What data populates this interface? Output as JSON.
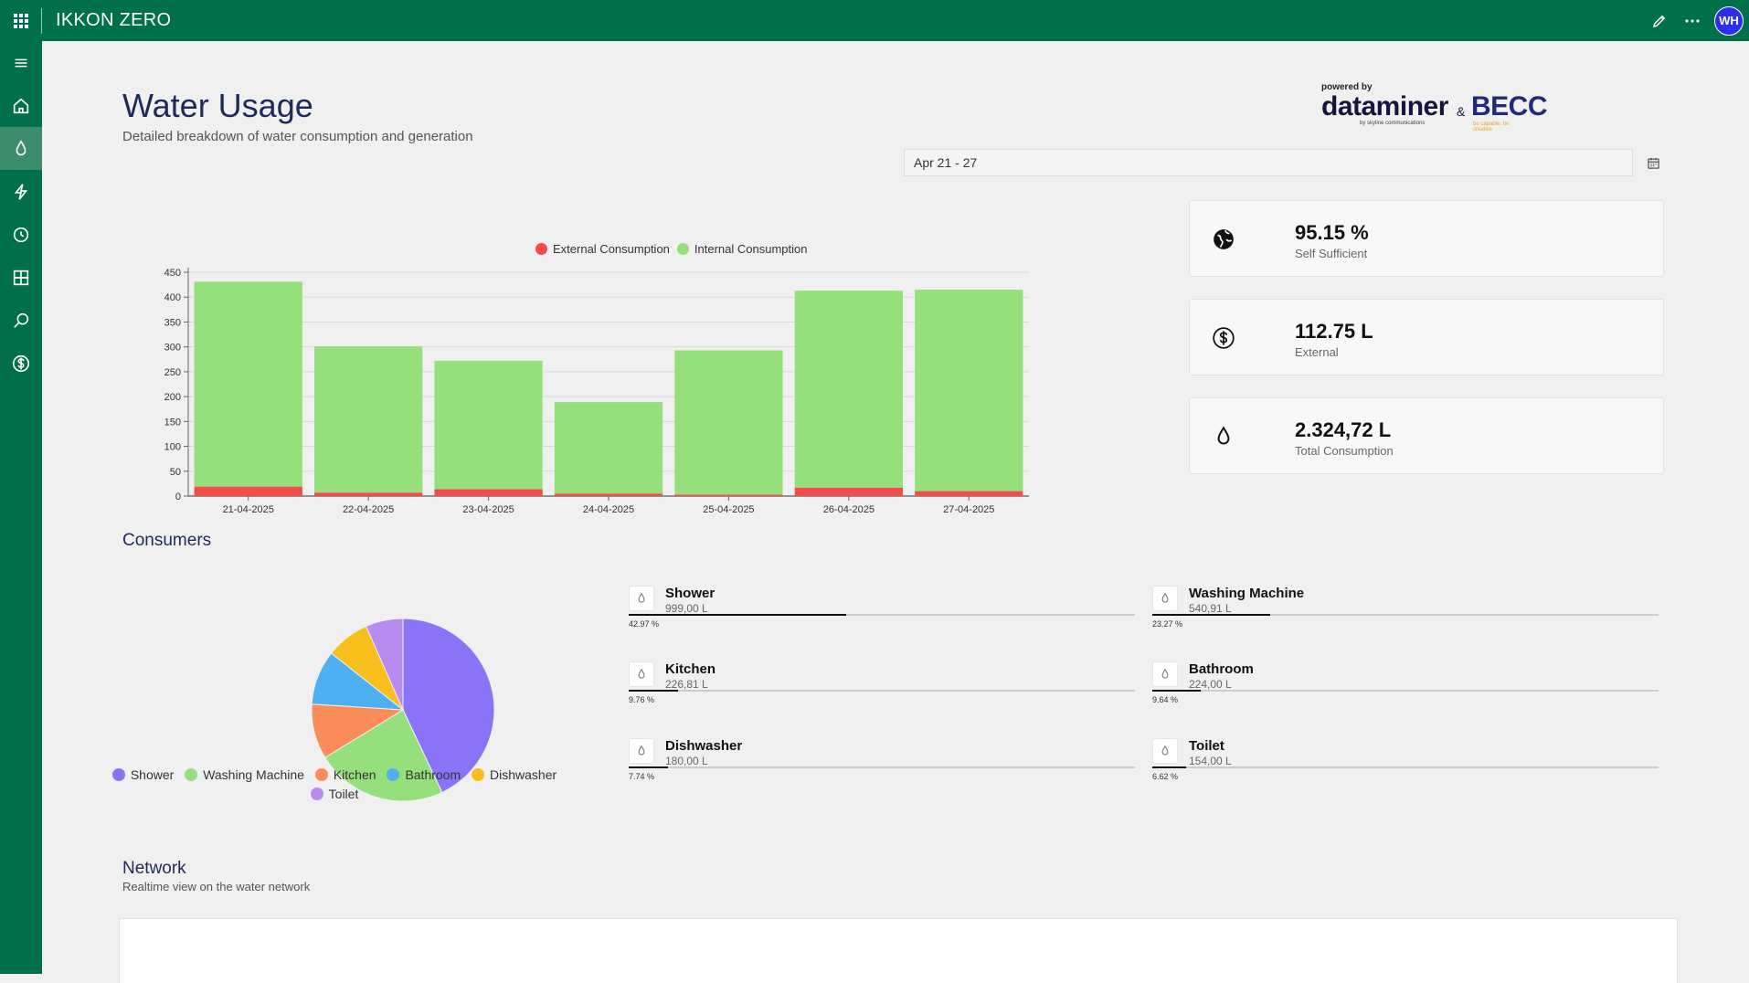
{
  "app": {
    "title": "IKKON ZERO",
    "user_initials": "WH"
  },
  "page": {
    "title": "Water Usage",
    "subtitle": "Detailed breakdown of water consumption and generation"
  },
  "logo": {
    "powered_by": "powered by",
    "brand1": "dataminer",
    "brand1_sub": "by skyline communications",
    "amp": "&",
    "brand2": "BECC",
    "brand2_sub": "be capable, be creative"
  },
  "date_filter": {
    "value": "Apr 21 - 27"
  },
  "chart_data": {
    "type": "bar",
    "stacked": true,
    "categories": [
      "21-04-2025",
      "22-04-2025",
      "23-04-2025",
      "24-04-2025",
      "25-04-2025",
      "26-04-2025",
      "27-04-2025"
    ],
    "series": [
      {
        "name": "External Consumption",
        "color": "#f44b4b",
        "values": [
          19,
          7,
          14,
          5,
          3,
          17,
          10
        ]
      },
      {
        "name": "Internal Consumption",
        "color": "#95e07c",
        "values": [
          412,
          294,
          258,
          184,
          290,
          396,
          405
        ]
      }
    ],
    "yticks": [
      0,
      50,
      100,
      150,
      200,
      250,
      300,
      350,
      400,
      450
    ],
    "ylim": [
      0,
      450
    ],
    "legend": "top",
    "grid": true
  },
  "stats": [
    {
      "value": "95.15 %",
      "label": "Self Sufficient",
      "icon": "globe-icon"
    },
    {
      "value": "112.75 L",
      "label": "External",
      "icon": "dollar-icon"
    },
    {
      "value": "2.324,72 L",
      "label": "Total Consumption",
      "icon": "drop-icon"
    }
  ],
  "consumers": {
    "title": "Consumers",
    "pie": [
      {
        "name": "Shower",
        "value": 42.97,
        "color": "#8b73f7"
      },
      {
        "name": "Washing Machine",
        "value": 23.27,
        "color": "#95e07c"
      },
      {
        "name": "Kitchen",
        "value": 9.76,
        "color": "#fb8d5a"
      },
      {
        "name": "Bathroom",
        "value": 9.64,
        "color": "#4db0f3"
      },
      {
        "name": "Dishwasher",
        "value": 7.74,
        "color": "#f9c01d"
      },
      {
        "name": "Toilet",
        "value": 6.62,
        "color": "#b78cf0"
      }
    ],
    "items": [
      {
        "name": "Shower",
        "amount": "999,00 L",
        "pct": "42.97 %",
        "fraction": 0.4297
      },
      {
        "name": "Washing Machine",
        "amount": "540,91 L",
        "pct": "23.27 %",
        "fraction": 0.2327
      },
      {
        "name": "Kitchen",
        "amount": "226,81 L",
        "pct": "9.76 %",
        "fraction": 0.0976
      },
      {
        "name": "Bathroom",
        "amount": "224,00 L",
        "pct": "9.64 %",
        "fraction": 0.0964
      },
      {
        "name": "Dishwasher",
        "amount": "180,00 L",
        "pct": "7.74 %",
        "fraction": 0.0774
      },
      {
        "name": "Toilet",
        "amount": "154,00 L",
        "pct": "6.62 %",
        "fraction": 0.0662
      }
    ]
  },
  "network": {
    "title": "Network",
    "subtitle": "Realtime view on the water network"
  },
  "sidebar": {
    "items": [
      "menu-icon",
      "home-icon",
      "drop-icon",
      "lightning-icon",
      "clock-icon",
      "grid-icon",
      "search-icon",
      "dollar-icon"
    ]
  }
}
